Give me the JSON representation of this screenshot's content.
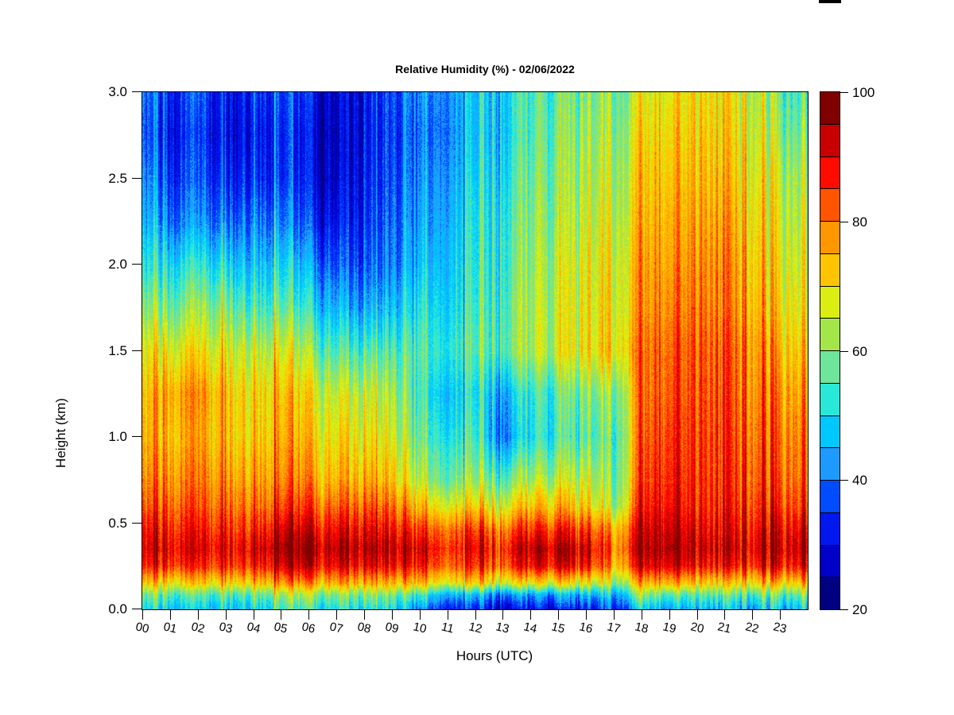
{
  "title": "Relative Humidity (%) - 02/06/2022",
  "axes": {
    "xlabel": "Hours (UTC)",
    "ylabel": "Height (km)",
    "x_tick_labels": [
      "00",
      "01",
      "02",
      "03",
      "04",
      "05",
      "06",
      "07",
      "08",
      "09",
      "10",
      "11",
      "12",
      "13",
      "14",
      "15",
      "16",
      "17",
      "18",
      "19",
      "20",
      "21",
      "22",
      "23"
    ],
    "y_tick_labels": [
      "0.0",
      "0.5",
      "1.0",
      "1.5",
      "2.0",
      "2.5",
      "3.0"
    ]
  },
  "colorbar": {
    "min": 20,
    "max": 100,
    "levels": 16,
    "tick_values": [
      20,
      40,
      60,
      80,
      100
    ],
    "palette_bottom_to_top": [
      "#000080",
      "#0000C8",
      "#0018EE",
      "#004CFF",
      "#1E9AFF",
      "#00C8FF",
      "#2AE8D8",
      "#6EE59B",
      "#A4E64A",
      "#DCEE11",
      "#FFC400",
      "#FF9800",
      "#FF5500",
      "#FF0B00",
      "#C80000",
      "#800000"
    ]
  },
  "chart_data": {
    "type": "heatmap",
    "title": "Relative Humidity (%) - 02/06/2022",
    "xlabel": "Hours (UTC)",
    "ylabel": "Height (km)",
    "xlim": [
      0,
      24
    ],
    "ylim": [
      0.0,
      3.0
    ],
    "zlim": [
      20,
      100
    ],
    "legend_position": "right",
    "grid": false,
    "x_hours": [
      0,
      1,
      2,
      3,
      4,
      5,
      6,
      7,
      8,
      9,
      10,
      11,
      12,
      13,
      14,
      15,
      16,
      17,
      18,
      19,
      20,
      21,
      22,
      23,
      24
    ],
    "heights_km": [
      3.0,
      2.75,
      2.5,
      2.25,
      2.0,
      1.75,
      1.5,
      1.25,
      1.0,
      0.75,
      0.6,
      0.45,
      0.35,
      0.25,
      0.15,
      0.08,
      0.0
    ],
    "values_percent": [
      [
        38,
        36,
        40,
        34,
        38,
        35,
        33,
        31,
        32,
        36,
        40,
        45,
        48,
        50,
        52,
        55,
        58,
        62,
        65,
        68,
        70,
        68,
        66,
        61,
        58
      ],
      [
        36,
        34,
        38,
        33,
        36,
        33,
        31,
        30,
        32,
        35,
        38,
        44,
        48,
        50,
        53,
        57,
        60,
        64,
        68,
        70,
        72,
        70,
        68,
        64,
        62
      ],
      [
        40,
        37,
        40,
        36,
        38,
        34,
        32,
        31,
        33,
        36,
        40,
        46,
        50,
        52,
        55,
        58,
        62,
        66,
        70,
        72,
        74,
        72,
        70,
        68,
        66
      ],
      [
        44,
        42,
        45,
        42,
        44,
        40,
        36,
        34,
        35,
        38,
        42,
        48,
        52,
        54,
        57,
        60,
        64,
        68,
        72,
        74,
        76,
        75,
        72,
        70,
        68
      ],
      [
        50,
        52,
        55,
        52,
        50,
        48,
        44,
        40,
        38,
        40,
        45,
        50,
        53,
        55,
        58,
        62,
        66,
        70,
        74,
        76,
        78,
        77,
        74,
        72,
        70
      ],
      [
        58,
        60,
        64,
        62,
        58,
        56,
        52,
        48,
        45,
        46,
        50,
        52,
        55,
        57,
        60,
        63,
        67,
        71,
        75,
        78,
        80,
        78,
        76,
        74,
        72
      ],
      [
        66,
        70,
        72,
        70,
        68,
        66,
        62,
        58,
        56,
        55,
        54,
        55,
        57,
        58,
        60,
        64,
        68,
        73,
        78,
        81,
        82,
        81,
        79,
        78,
        76
      ],
      [
        70,
        78,
        80,
        76,
        74,
        72,
        70,
        68,
        66,
        62,
        52,
        50,
        52,
        46,
        50,
        54,
        58,
        62,
        78,
        82,
        83,
        82,
        80,
        82,
        80
      ],
      [
        72,
        76,
        78,
        76,
        75,
        74,
        73,
        72,
        70,
        66,
        56,
        54,
        55,
        42,
        48,
        52,
        55,
        58,
        80,
        84,
        84,
        83,
        82,
        84,
        83
      ],
      [
        76,
        80,
        82,
        80,
        80,
        78,
        78,
        77,
        76,
        72,
        62,
        60,
        62,
        58,
        60,
        62,
        64,
        60,
        82,
        86,
        85,
        84,
        84,
        86,
        85
      ],
      [
        80,
        84,
        85,
        84,
        84,
        83,
        84,
        84,
        83,
        80,
        72,
        70,
        72,
        68,
        70,
        72,
        70,
        64,
        85,
        88,
        86,
        85,
        86,
        89,
        88
      ],
      [
        86,
        89,
        90,
        89,
        90,
        91,
        92,
        92,
        91,
        88,
        84,
        84,
        86,
        82,
        84,
        85,
        84,
        78,
        90,
        92,
        90,
        88,
        90,
        94,
        94
      ],
      [
        88,
        92,
        93,
        92,
        94,
        95,
        96,
        96,
        95,
        92,
        90,
        88,
        90,
        88,
        90,
        92,
        90,
        82,
        92,
        94,
        92,
        90,
        92,
        96,
        97
      ],
      [
        84,
        88,
        88,
        88,
        90,
        90,
        92,
        92,
        90,
        88,
        86,
        84,
        86,
        84,
        86,
        88,
        86,
        78,
        88,
        90,
        88,
        86,
        88,
        92,
        93
      ],
      [
        70,
        72,
        74,
        74,
        76,
        76,
        78,
        78,
        76,
        74,
        72,
        70,
        72,
        68,
        66,
        68,
        66,
        64,
        72,
        74,
        72,
        70,
        72,
        76,
        78
      ],
      [
        56,
        58,
        58,
        58,
        60,
        60,
        62,
        62,
        60,
        58,
        52,
        48,
        46,
        42,
        40,
        42,
        44,
        48,
        58,
        54,
        56,
        55,
        56,
        60,
        62
      ],
      [
        48,
        50,
        50,
        50,
        52,
        52,
        54,
        54,
        52,
        50,
        40,
        36,
        34,
        30,
        28,
        30,
        32,
        38,
        46,
        42,
        46,
        45,
        46,
        50,
        52
      ]
    ]
  }
}
